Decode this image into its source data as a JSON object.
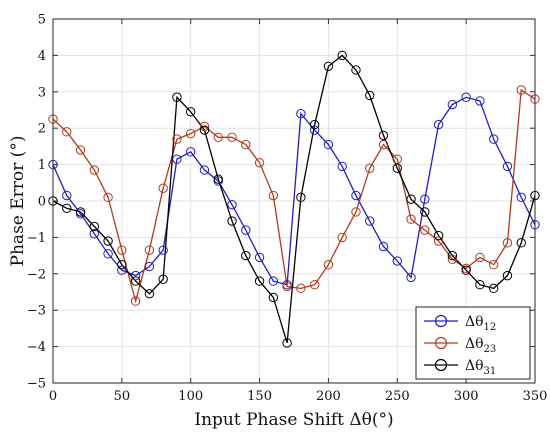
{
  "chart_data": {
    "type": "line",
    "title": "",
    "xlabel": "Input Phase Shift Δθ(°)",
    "ylabel": "Phase Error (°)",
    "xlim": [
      0,
      350
    ],
    "ylim": [
      -5,
      5
    ],
    "xticks": [
      "0",
      "50",
      "100",
      "150",
      "200",
      "250",
      "300",
      "350"
    ],
    "yticks": [
      "−5",
      "−4",
      "−3",
      "−2",
      "−1",
      "0",
      "1",
      "2",
      "3",
      "4",
      "5"
    ],
    "grid": true,
    "legend_position": "bottom-right",
    "x": [
      0,
      10,
      20,
      30,
      40,
      50,
      60,
      70,
      80,
      90,
      100,
      110,
      120,
      130,
      140,
      150,
      160,
      170,
      180,
      190,
      200,
      210,
      220,
      230,
      240,
      250,
      260,
      270,
      280,
      290,
      300,
      310,
      320,
      330,
      340,
      350
    ],
    "series": [
      {
        "name": "Δθ",
        "subscript": "12",
        "color": "#1f1fbf",
        "values": [
          1.0,
          0.15,
          -0.35,
          -0.9,
          -1.45,
          -1.9,
          -2.05,
          -1.8,
          -1.35,
          1.15,
          1.35,
          0.85,
          0.55,
          -0.1,
          -0.8,
          -1.55,
          -2.2,
          -2.3,
          2.4,
          1.95,
          1.55,
          0.95,
          0.15,
          -0.55,
          -1.25,
          -1.65,
          -2.1,
          0.05,
          2.1,
          2.65,
          2.85,
          2.75,
          1.7,
          0.95,
          0.1,
          -0.65
        ]
      },
      {
        "name": "Δθ",
        "subscript": "23",
        "color": "#b03a1f",
        "values": [
          2.25,
          1.9,
          1.4,
          0.85,
          0.1,
          -1.35,
          -2.75,
          -1.35,
          0.35,
          1.7,
          1.85,
          2.05,
          1.75,
          1.75,
          1.55,
          1.05,
          0.15,
          -2.35,
          -2.4,
          -2.3,
          -1.75,
          -1.0,
          -0.3,
          0.9,
          1.55,
          1.15,
          -0.5,
          -0.8,
          -1.1,
          -1.6,
          -1.85,
          -1.55,
          -1.75,
          -1.15,
          3.05,
          2.8
        ]
      },
      {
        "name": "Δθ",
        "subscript": "31",
        "color": "#000000",
        "values": [
          0.0,
          -0.2,
          -0.3,
          -0.7,
          -1.1,
          -1.75,
          -2.2,
          -2.55,
          -2.15,
          2.85,
          2.45,
          1.95,
          0.6,
          -0.55,
          -1.5,
          -2.2,
          -2.65,
          -3.9,
          0.1,
          2.1,
          3.7,
          4.0,
          3.6,
          2.9,
          1.8,
          0.9,
          0.05,
          -0.3,
          -0.95,
          -1.5,
          -1.9,
          -2.3,
          -2.4,
          -2.05,
          -1.15,
          0.15
        ]
      }
    ]
  }
}
